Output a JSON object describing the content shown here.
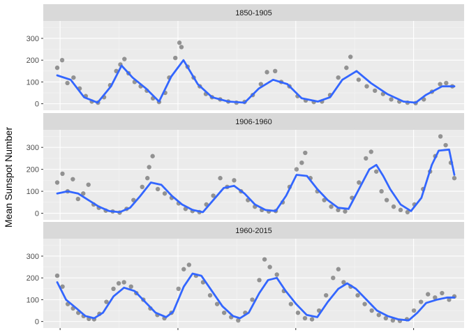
{
  "chart_data": {
    "type": "scatter",
    "ylabel": "Mean Sunspot Number",
    "xlabel": "",
    "x_unit": "month index within panel",
    "ylim": [
      -30,
      380
    ],
    "yticks": [
      0,
      100,
      200,
      300
    ],
    "grid": true,
    "smooth_color": "#3366ff",
    "point_color": "#000000",
    "panels": [
      {
        "strip": "1850-1905",
        "smooth": [
          [
            0,
            130
          ],
          [
            33,
            110
          ],
          [
            66,
            30
          ],
          [
            99,
            5
          ],
          [
            132,
            80
          ],
          [
            158,
            175
          ],
          [
            185,
            120
          ],
          [
            218,
            70
          ],
          [
            250,
            10
          ],
          [
            280,
            125
          ],
          [
            310,
            200
          ],
          [
            345,
            90
          ],
          [
            380,
            30
          ],
          [
            420,
            10
          ],
          [
            460,
            5
          ],
          [
            495,
            70
          ],
          [
            530,
            110
          ],
          [
            565,
            90
          ],
          [
            600,
            25
          ],
          [
            640,
            10
          ],
          [
            670,
            30
          ],
          [
            700,
            110
          ],
          [
            735,
            150
          ],
          [
            770,
            95
          ],
          [
            810,
            45
          ],
          [
            850,
            10
          ],
          [
            880,
            5
          ],
          [
            905,
            40
          ],
          [
            945,
            80
          ],
          [
            975,
            80
          ]
        ],
        "points": [
          [
            0,
            165
          ],
          [
            12,
            200
          ],
          [
            25,
            95
          ],
          [
            40,
            120
          ],
          [
            55,
            70
          ],
          [
            70,
            35
          ],
          [
            85,
            10
          ],
          [
            100,
            5
          ],
          [
            115,
            30
          ],
          [
            130,
            85
          ],
          [
            145,
            150
          ],
          [
            155,
            180
          ],
          [
            165,
            205
          ],
          [
            175,
            140
          ],
          [
            190,
            100
          ],
          [
            205,
            80
          ],
          [
            220,
            60
          ],
          [
            235,
            25
          ],
          [
            250,
            8
          ],
          [
            265,
            50
          ],
          [
            275,
            120
          ],
          [
            290,
            210
          ],
          [
            300,
            280
          ],
          [
            305,
            260
          ],
          [
            320,
            170
          ],
          [
            335,
            120
          ],
          [
            350,
            80
          ],
          [
            365,
            45
          ],
          [
            380,
            30
          ],
          [
            400,
            20
          ],
          [
            420,
            10
          ],
          [
            440,
            5
          ],
          [
            460,
            8
          ],
          [
            480,
            40
          ],
          [
            500,
            90
          ],
          [
            515,
            145
          ],
          [
            535,
            150
          ],
          [
            550,
            100
          ],
          [
            570,
            80
          ],
          [
            590,
            35
          ],
          [
            610,
            15
          ],
          [
            630,
            8
          ],
          [
            650,
            10
          ],
          [
            670,
            40
          ],
          [
            690,
            120
          ],
          [
            710,
            165
          ],
          [
            720,
            215
          ],
          [
            740,
            110
          ],
          [
            760,
            80
          ],
          [
            780,
            60
          ],
          [
            800,
            45
          ],
          [
            820,
            20
          ],
          [
            840,
            10
          ],
          [
            860,
            5
          ],
          [
            880,
            3
          ],
          [
            900,
            20
          ],
          [
            920,
            55
          ],
          [
            940,
            90
          ],
          [
            955,
            95
          ],
          [
            970,
            80
          ]
        ]
      },
      {
        "strip": "1906-1960",
        "smooth": [
          [
            0,
            90
          ],
          [
            30,
            100
          ],
          [
            60,
            90
          ],
          [
            90,
            60
          ],
          [
            120,
            30
          ],
          [
            150,
            10
          ],
          [
            180,
            5
          ],
          [
            210,
            25
          ],
          [
            240,
            80
          ],
          [
            270,
            140
          ],
          [
            300,
            130
          ],
          [
            330,
            80
          ],
          [
            360,
            40
          ],
          [
            390,
            15
          ],
          [
            420,
            5
          ],
          [
            450,
            60
          ],
          [
            480,
            115
          ],
          [
            510,
            125
          ],
          [
            540,
            90
          ],
          [
            570,
            40
          ],
          [
            600,
            15
          ],
          [
            630,
            10
          ],
          [
            660,
            80
          ],
          [
            690,
            175
          ],
          [
            720,
            170
          ],
          [
            750,
            110
          ],
          [
            780,
            60
          ],
          [
            810,
            25
          ],
          [
            840,
            20
          ],
          [
            870,
            110
          ],
          [
            900,
            200
          ],
          [
            920,
            220
          ],
          [
            940,
            170
          ],
          [
            960,
            110
          ],
          [
            990,
            40
          ],
          [
            1020,
            10
          ],
          [
            1050,
            70
          ],
          [
            1080,
            220
          ],
          [
            1100,
            285
          ],
          [
            1130,
            290
          ],
          [
            1145,
            175
          ]
        ],
        "points": [
          [
            0,
            140
          ],
          [
            15,
            180
          ],
          [
            30,
            100
          ],
          [
            45,
            155
          ],
          [
            60,
            65
          ],
          [
            75,
            90
          ],
          [
            90,
            130
          ],
          [
            105,
            40
          ],
          [
            120,
            25
          ],
          [
            140,
            12
          ],
          [
            160,
            8
          ],
          [
            180,
            3
          ],
          [
            200,
            20
          ],
          [
            220,
            60
          ],
          [
            245,
            120
          ],
          [
            260,
            160
          ],
          [
            265,
            210
          ],
          [
            275,
            260
          ],
          [
            290,
            110
          ],
          [
            310,
            90
          ],
          [
            330,
            70
          ],
          [
            350,
            45
          ],
          [
            370,
            20
          ],
          [
            390,
            10
          ],
          [
            410,
            5
          ],
          [
            430,
            40
          ],
          [
            450,
            80
          ],
          [
            470,
            160
          ],
          [
            490,
            120
          ],
          [
            510,
            150
          ],
          [
            530,
            100
          ],
          [
            550,
            60
          ],
          [
            570,
            30
          ],
          [
            590,
            15
          ],
          [
            610,
            8
          ],
          [
            630,
            10
          ],
          [
            650,
            50
          ],
          [
            670,
            120
          ],
          [
            690,
            200
          ],
          [
            705,
            230
          ],
          [
            715,
            275
          ],
          [
            730,
            160
          ],
          [
            750,
            100
          ],
          [
            770,
            60
          ],
          [
            790,
            30
          ],
          [
            810,
            15
          ],
          [
            830,
            8
          ],
          [
            850,
            70
          ],
          [
            870,
            140
          ],
          [
            890,
            250
          ],
          [
            905,
            280
          ],
          [
            920,
            190
          ],
          [
            935,
            100
          ],
          [
            950,
            60
          ],
          [
            970,
            30
          ],
          [
            990,
            15
          ],
          [
            1010,
            5
          ],
          [
            1030,
            40
          ],
          [
            1055,
            110
          ],
          [
            1075,
            190
          ],
          [
            1090,
            260
          ],
          [
            1105,
            350
          ],
          [
            1120,
            310
          ],
          [
            1135,
            230
          ],
          [
            1145,
            160
          ]
        ]
      },
      {
        "strip": "1960-2015",
        "smooth": [
          [
            0,
            180
          ],
          [
            25,
            100
          ],
          [
            55,
            60
          ],
          [
            80,
            25
          ],
          [
            105,
            15
          ],
          [
            130,
            40
          ],
          [
            160,
            115
          ],
          [
            190,
            155
          ],
          [
            220,
            140
          ],
          [
            250,
            90
          ],
          [
            280,
            40
          ],
          [
            310,
            20
          ],
          [
            330,
            45
          ],
          [
            360,
            160
          ],
          [
            385,
            220
          ],
          [
            410,
            210
          ],
          [
            440,
            140
          ],
          [
            470,
            70
          ],
          [
            500,
            25
          ],
          [
            520,
            15
          ],
          [
            545,
            40
          ],
          [
            575,
            130
          ],
          [
            600,
            190
          ],
          [
            625,
            200
          ],
          [
            650,
            140
          ],
          [
            680,
            80
          ],
          [
            710,
            30
          ],
          [
            740,
            20
          ],
          [
            770,
            90
          ],
          [
            800,
            150
          ],
          [
            825,
            175
          ],
          [
            850,
            150
          ],
          [
            880,
            100
          ],
          [
            910,
            50
          ],
          [
            940,
            25
          ],
          [
            970,
            10
          ],
          [
            1000,
            5
          ],
          [
            1025,
            40
          ],
          [
            1050,
            85
          ],
          [
            1080,
            100
          ],
          [
            1110,
            110
          ],
          [
            1130,
            110
          ]
        ],
        "points": [
          [
            0,
            210
          ],
          [
            15,
            160
          ],
          [
            30,
            80
          ],
          [
            45,
            60
          ],
          [
            60,
            40
          ],
          [
            75,
            25
          ],
          [
            90,
            12
          ],
          [
            105,
            10
          ],
          [
            120,
            35
          ],
          [
            140,
            90
          ],
          [
            160,
            150
          ],
          [
            175,
            175
          ],
          [
            190,
            180
          ],
          [
            210,
            160
          ],
          [
            225,
            130
          ],
          [
            245,
            100
          ],
          [
            265,
            60
          ],
          [
            285,
            30
          ],
          [
            305,
            15
          ],
          [
            325,
            40
          ],
          [
            345,
            150
          ],
          [
            360,
            240
          ],
          [
            375,
            260
          ],
          [
            395,
            210
          ],
          [
            415,
            180
          ],
          [
            435,
            120
          ],
          [
            455,
            80
          ],
          [
            475,
            40
          ],
          [
            495,
            20
          ],
          [
            515,
            5
          ],
          [
            535,
            40
          ],
          [
            555,
            100
          ],
          [
            575,
            190
          ],
          [
            590,
            285
          ],
          [
            605,
            250
          ],
          [
            625,
            215
          ],
          [
            645,
            140
          ],
          [
            665,
            80
          ],
          [
            685,
            40
          ],
          [
            705,
            15
          ],
          [
            725,
            10
          ],
          [
            745,
            50
          ],
          [
            765,
            120
          ],
          [
            785,
            200
          ],
          [
            800,
            240
          ],
          [
            815,
            180
          ],
          [
            835,
            160
          ],
          [
            855,
            120
          ],
          [
            875,
            80
          ],
          [
            895,
            50
          ],
          [
            915,
            30
          ],
          [
            935,
            15
          ],
          [
            955,
            5
          ],
          [
            975,
            3
          ],
          [
            995,
            10
          ],
          [
            1015,
            50
          ],
          [
            1035,
            90
          ],
          [
            1055,
            125
          ],
          [
            1075,
            110
          ],
          [
            1095,
            130
          ],
          [
            1115,
            100
          ],
          [
            1130,
            115
          ]
        ]
      }
    ]
  }
}
